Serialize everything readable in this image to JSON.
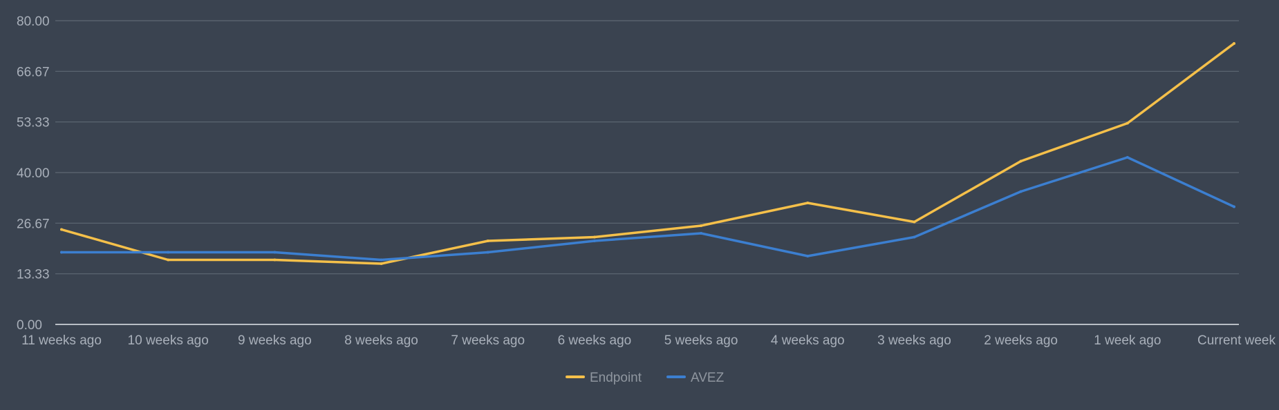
{
  "chart_data": {
    "type": "line",
    "title": "",
    "xlabel": "",
    "ylabel": "",
    "ylim": [
      0,
      80
    ],
    "yticks": [
      "0.00",
      "13.33",
      "26.67",
      "40.00",
      "53.33",
      "66.67",
      "80.00"
    ],
    "categories": [
      "11 weeks ago",
      "10 weeks ago",
      "9 weeks ago",
      "8 weeks ago",
      "7 weeks ago",
      "6 weeks ago",
      "5 weeks ago",
      "4 weeks ago",
      "3 weeks ago",
      "2 weeks ago",
      "1 week ago",
      "Current week"
    ],
    "grid": true,
    "legend_position": "bottom",
    "series": [
      {
        "name": "Endpoint",
        "color": "#f5c04a",
        "values": [
          25,
          17,
          17,
          16,
          22,
          23,
          26,
          32,
          27,
          43,
          53,
          74
        ]
      },
      {
        "name": "AVEZ",
        "color": "#3c7fd0",
        "values": [
          19,
          19,
          19,
          17,
          19,
          22,
          24,
          18,
          23,
          35,
          44,
          31
        ]
      }
    ]
  }
}
